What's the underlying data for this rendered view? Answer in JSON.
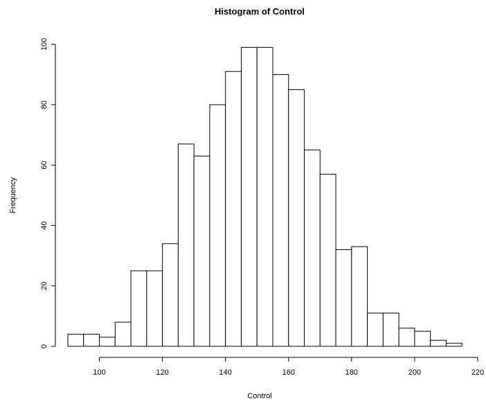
{
  "chart_data": {
    "type": "bar",
    "title": "Histogram of Control",
    "xlabel": "Control",
    "ylabel": "Frequency",
    "bin_width": 5,
    "bins": [
      {
        "start": 90,
        "end": 95,
        "count": 4
      },
      {
        "start": 95,
        "end": 100,
        "count": 4
      },
      {
        "start": 100,
        "end": 105,
        "count": 3
      },
      {
        "start": 105,
        "end": 110,
        "count": 8
      },
      {
        "start": 110,
        "end": 115,
        "count": 25
      },
      {
        "start": 115,
        "end": 120,
        "count": 25
      },
      {
        "start": 120,
        "end": 125,
        "count": 34
      },
      {
        "start": 125,
        "end": 130,
        "count": 67
      },
      {
        "start": 130,
        "end": 135,
        "count": 63
      },
      {
        "start": 135,
        "end": 140,
        "count": 80
      },
      {
        "start": 140,
        "end": 145,
        "count": 91
      },
      {
        "start": 145,
        "end": 150,
        "count": 99
      },
      {
        "start": 150,
        "end": 155,
        "count": 99
      },
      {
        "start": 155,
        "end": 160,
        "count": 90
      },
      {
        "start": 160,
        "end": 165,
        "count": 85
      },
      {
        "start": 165,
        "end": 170,
        "count": 65
      },
      {
        "start": 170,
        "end": 175,
        "count": 57
      },
      {
        "start": 175,
        "end": 180,
        "count": 32
      },
      {
        "start": 180,
        "end": 185,
        "count": 33
      },
      {
        "start": 185,
        "end": 190,
        "count": 11
      },
      {
        "start": 190,
        "end": 195,
        "count": 11
      },
      {
        "start": 195,
        "end": 200,
        "count": 6
      },
      {
        "start": 200,
        "end": 205,
        "count": 5
      },
      {
        "start": 205,
        "end": 210,
        "count": 2
      },
      {
        "start": 210,
        "end": 215,
        "count": 1
      }
    ],
    "xlim": [
      90,
      220
    ],
    "ylim": [
      0,
      100
    ],
    "x_ticks": [
      "100",
      "120",
      "140",
      "160",
      "180",
      "200",
      "220"
    ],
    "y_ticks": [
      "0",
      "20",
      "40",
      "60",
      "80",
      "100"
    ],
    "grid": false,
    "colors": {
      "bar_fill": "#ffffff",
      "bar_stroke": "#000000"
    }
  }
}
